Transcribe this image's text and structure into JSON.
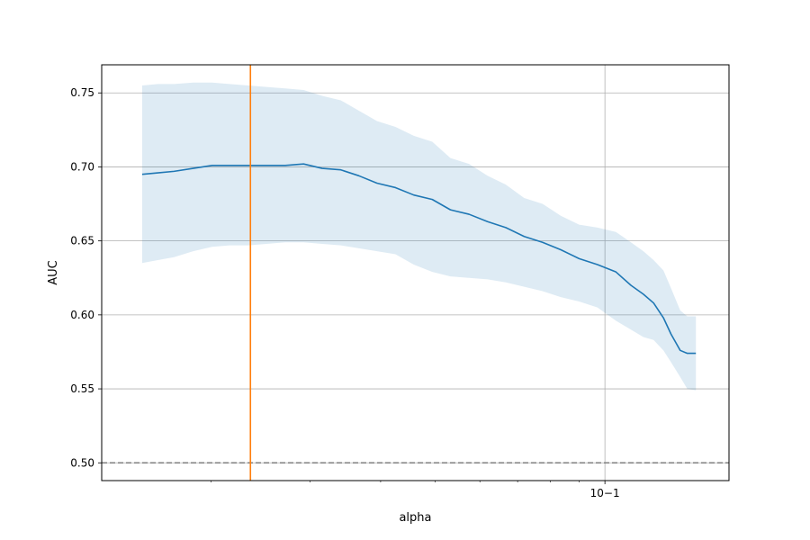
{
  "chart_data": {
    "type": "line",
    "xlabel": "alpha",
    "ylabel": "AUC",
    "xscale": "log",
    "xlim": [
      0.0128,
      0.166
    ],
    "ylim": [
      0.488,
      0.769
    ],
    "grid": true,
    "x_tick_labels": [
      {
        "value": 0.1,
        "label": "10−1"
      }
    ],
    "y_ticks": [
      0.5,
      0.55,
      0.6,
      0.65,
      0.7,
      0.75
    ],
    "y_tick_labels": [
      "0.50",
      "0.55",
      "0.60",
      "0.65",
      "0.70",
      "0.75"
    ],
    "series": [
      {
        "type": "line",
        "color": "#1f77b4",
        "x": [
          0.0151,
          0.0161,
          0.0172,
          0.0186,
          0.0201,
          0.0216,
          0.0233,
          0.0251,
          0.0271,
          0.0292,
          0.0315,
          0.034,
          0.0366,
          0.0394,
          0.0425,
          0.0458,
          0.0494,
          0.0532,
          0.0574,
          0.0619,
          0.0667,
          0.0719,
          0.0775,
          0.0835,
          0.09,
          0.097,
          0.1046,
          0.1112,
          0.117,
          0.122,
          0.127,
          0.131,
          0.136,
          0.14,
          0.145
        ],
        "y": [
          0.695,
          0.696,
          0.697,
          0.699,
          0.701,
          0.701,
          0.701,
          0.701,
          0.701,
          0.702,
          0.699,
          0.698,
          0.694,
          0.689,
          0.686,
          0.681,
          0.678,
          0.671,
          0.668,
          0.663,
          0.659,
          0.653,
          0.649,
          0.644,
          0.638,
          0.634,
          0.629,
          0.62,
          0.614,
          0.608,
          0.598,
          0.587,
          0.576,
          0.574,
          0.574
        ]
      },
      {
        "type": "band",
        "color": "#1f77b4",
        "opacity": 0.15,
        "x": [
          0.0151,
          0.0161,
          0.0172,
          0.0186,
          0.0201,
          0.0216,
          0.0233,
          0.0251,
          0.0271,
          0.0292,
          0.0315,
          0.034,
          0.0366,
          0.0394,
          0.0425,
          0.0458,
          0.0494,
          0.0532,
          0.0574,
          0.0619,
          0.0667,
          0.0719,
          0.0775,
          0.0835,
          0.09,
          0.097,
          0.1046,
          0.1112,
          0.117,
          0.122,
          0.127,
          0.131,
          0.136,
          0.14,
          0.145
        ],
        "lower": [
          0.635,
          0.637,
          0.639,
          0.643,
          0.646,
          0.647,
          0.647,
          0.648,
          0.649,
          0.649,
          0.648,
          0.647,
          0.645,
          0.643,
          0.641,
          0.634,
          0.629,
          0.626,
          0.625,
          0.624,
          0.622,
          0.619,
          0.616,
          0.612,
          0.609,
          0.605,
          0.596,
          0.59,
          0.585,
          0.583,
          0.576,
          0.568,
          0.558,
          0.55,
          0.549
        ],
        "upper": [
          0.755,
          0.756,
          0.756,
          0.757,
          0.757,
          0.756,
          0.755,
          0.754,
          0.753,
          0.752,
          0.748,
          0.745,
          0.738,
          0.731,
          0.727,
          0.721,
          0.717,
          0.706,
          0.702,
          0.694,
          0.688,
          0.679,
          0.675,
          0.667,
          0.661,
          0.659,
          0.656,
          0.649,
          0.643,
          0.637,
          0.63,
          0.618,
          0.603,
          0.599,
          0.599
        ]
      },
      {
        "type": "hline",
        "y": 0.5,
        "color": "#808080",
        "style": "dashed"
      },
      {
        "type": "vline",
        "x": 0.0235,
        "color": "#ff7f0e"
      }
    ]
  }
}
